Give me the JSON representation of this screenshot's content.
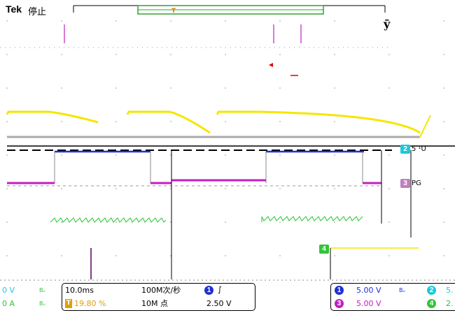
{
  "header": {
    "brand": "Tek",
    "run_state": "停止",
    "trigger_marker": "T"
  },
  "markers": {
    "ch2_tag": "2",
    "ch2_tail": "5 ¹U",
    "ch3_tag": "3",
    "ch3_tail": "PG",
    "ch4_tag": "4"
  },
  "readout_left": {
    "row1_value": "0 V",
    "row1_flag": "Bᵤ",
    "row2_value": "0 A",
    "row2_flag": "Bᵤ"
  },
  "timebase": {
    "scale": "10.0ms",
    "delay_label": "T",
    "delay_value": "19.80 %",
    "rate": "100M次/秒",
    "points": "10M 点",
    "trig_source": "1",
    "trig_slope": "∫",
    "trig_level": "2.50 V"
  },
  "channels": {
    "ch1_num": "1",
    "ch1_scale": "5.00 V",
    "ch1_flag": "Bᵤ",
    "ch2_num": "2",
    "ch2_scale": "5.",
    "ch3_num": "3",
    "ch3_scale": "5.00 V",
    "ch4_num": "4",
    "ch4_scale": "2."
  },
  "colors": {
    "ch1": "#f5e600",
    "ch2": "#20c8d8",
    "ch3": "#c020c0",
    "ch4": "#33c33a",
    "math": "#2030d0",
    "trigger": "#e0a000"
  }
}
